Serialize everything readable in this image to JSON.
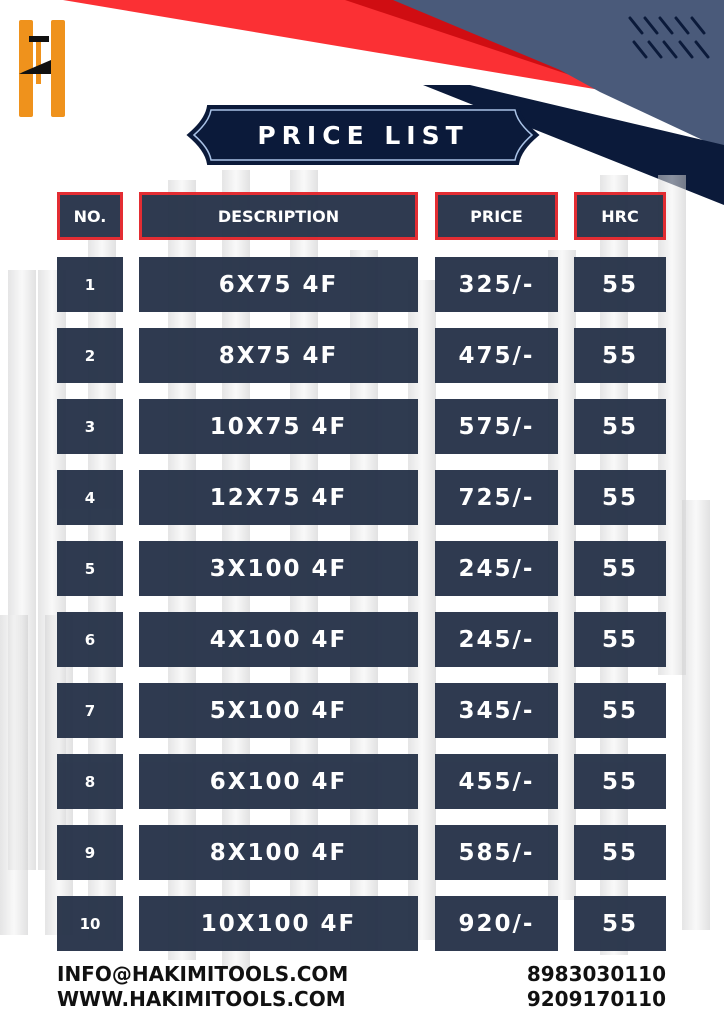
{
  "title": "PRICE LIST",
  "colors": {
    "navy": "#0b1a3a",
    "cell": "#273349",
    "red": "#e2252b",
    "logo": "#ef921c",
    "slate": "#4a5a7a"
  },
  "logo_letter": "H",
  "headers": {
    "no": "NO.",
    "description": "DESCRIPTION",
    "price": "PRICE",
    "hrc": "HRC"
  },
  "rows": [
    {
      "no": "1",
      "description": "6X75 4F",
      "price": "325/-",
      "hrc": "55"
    },
    {
      "no": "2",
      "description": "8X75 4F",
      "price": "475/-",
      "hrc": "55"
    },
    {
      "no": "3",
      "description": "10X75 4F",
      "price": "575/-",
      "hrc": "55"
    },
    {
      "no": "4",
      "description": "12X75 4F",
      "price": "725/-",
      "hrc": "55"
    },
    {
      "no": "5",
      "description": "3X100 4F",
      "price": "245/-",
      "hrc": "55"
    },
    {
      "no": "6",
      "description": "4X100 4F",
      "price": "245/-",
      "hrc": "55"
    },
    {
      "no": "7",
      "description": "5X100 4F",
      "price": "345/-",
      "hrc": "55"
    },
    {
      "no": "8",
      "description": "6X100 4F",
      "price": "455/-",
      "hrc": "55"
    },
    {
      "no": "9",
      "description": "8X100 4F",
      "price": "585/-",
      "hrc": "55"
    },
    {
      "no": "10",
      "description": "10X100 4F",
      "price": "920/-",
      "hrc": "55"
    }
  ],
  "footer": {
    "email": "INFO@HAKIMITOOLS.COM",
    "website": "WWW.HAKIMITOOLS.COM",
    "phone1": "8983030110",
    "phone2": "9209170110"
  }
}
